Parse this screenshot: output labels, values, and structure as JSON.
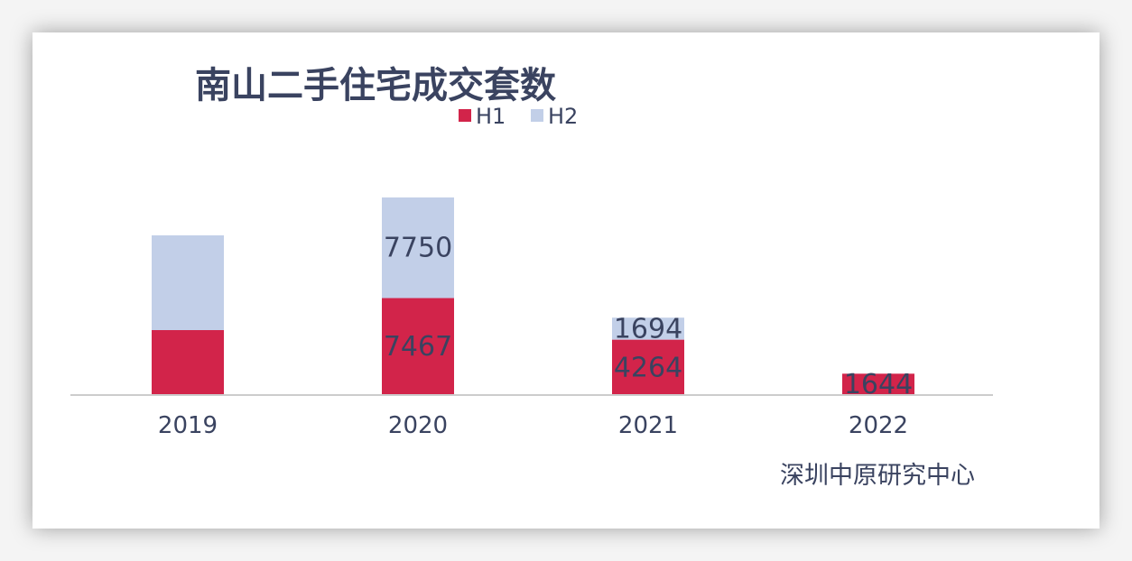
{
  "chart_data": {
    "type": "bar",
    "stacked": true,
    "title": "南山二手住宅成交套数",
    "categories": [
      "2019",
      "2020",
      "2021",
      "2022"
    ],
    "series": [
      {
        "name": "H1",
        "color": "#d2244a",
        "values": [
          5000,
          7467,
          4264,
          1644
        ],
        "labels": [
          "",
          "7467",
          "4264",
          "1644"
        ]
      },
      {
        "name": "H2",
        "color": "#c2cfe8",
        "values": [
          7300,
          7750,
          1694,
          null
        ],
        "labels": [
          "",
          "7750",
          "1694",
          ""
        ]
      }
    ],
    "legend_position": "top",
    "grid": false,
    "ylim": [
      0,
      16000
    ],
    "xlabel": "",
    "ylabel": ""
  },
  "source_note": "深圳中原研究中心"
}
